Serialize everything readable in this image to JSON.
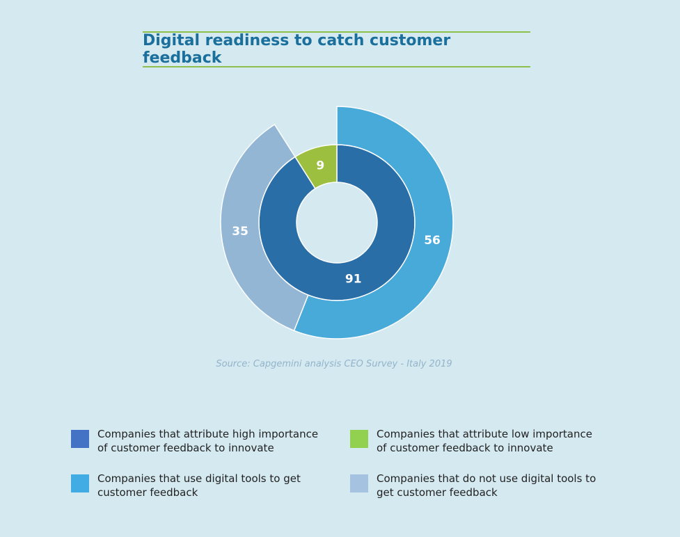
{
  "chart_data": {
    "type": "nested-donut",
    "title": "Digital readiness to catch customer feedback",
    "source": "Source: Capgemini analysis CEO Survey - Italy 2019",
    "rings": [
      {
        "series": [
          {
            "name": "Companies that attribute high importance of customer feedback to innovate",
            "color": "#2a6ea8",
            "legend_color": "#4472c4",
            "value": 91
          },
          {
            "name": "Companies that attribute low importance of customer feedback to innovate",
            "color": "#9dbf3f",
            "legend_color": "#92d050",
            "value": 9
          }
        ]
      },
      {
        "series": [
          {
            "name": "Companies that use digital tools to get customer feedback",
            "color": "#48aad8",
            "legend_color": "#41abe3",
            "value": 56
          },
          {
            "name": "Companies that do not use digital tools to get customer feedback",
            "color": "#93b6d4",
            "legend_color": "#a5c3e1",
            "value": 35
          }
        ]
      }
    ]
  }
}
